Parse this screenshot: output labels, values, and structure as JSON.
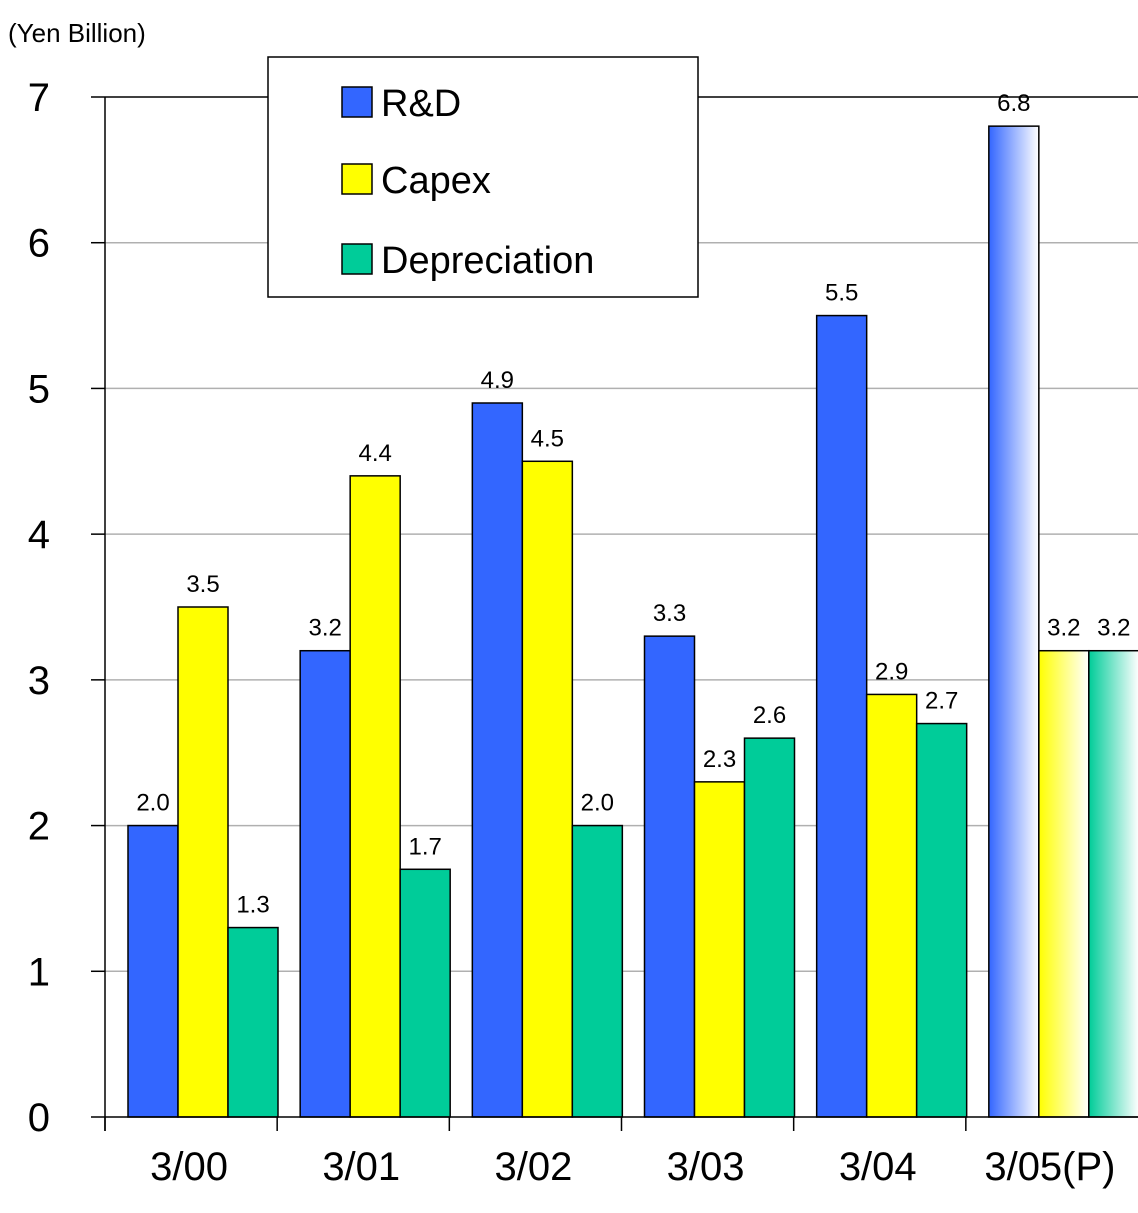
{
  "chart_data": {
    "type": "bar",
    "unit_label": "(Yen Billion)",
    "categories": [
      "3/00",
      "3/01",
      "3/02",
      "3/03",
      "3/04",
      "3/05(P)"
    ],
    "series": [
      {
        "name": "R&D",
        "color": "#3366ff",
        "values": [
          2.0,
          3.2,
          4.9,
          3.3,
          5.5,
          6.8
        ],
        "labels": [
          "2.0",
          "3.2",
          "4.9",
          "3.3",
          "5.5",
          "6.8"
        ]
      },
      {
        "name": "Capex",
        "color": "#ffff00",
        "values": [
          3.5,
          4.4,
          4.5,
          2.3,
          2.9,
          3.2
        ],
        "labels": [
          "3.5",
          "4.4",
          "4.5",
          "2.3",
          "2.9",
          "3.2"
        ]
      },
      {
        "name": "Depreciation",
        "color": "#00cc99",
        "values": [
          1.3,
          1.7,
          2.0,
          2.6,
          2.7,
          3.2
        ],
        "labels": [
          "1.3",
          "1.7",
          "2.0",
          "2.6",
          "2.7",
          "3.2"
        ]
      }
    ],
    "projected_category": "3/05(P)",
    "ylim": [
      0,
      7
    ],
    "yticks": [
      "0",
      "1",
      "2",
      "3",
      "4",
      "5",
      "6",
      "7"
    ],
    "grid": true,
    "legend_position": "top-left"
  }
}
